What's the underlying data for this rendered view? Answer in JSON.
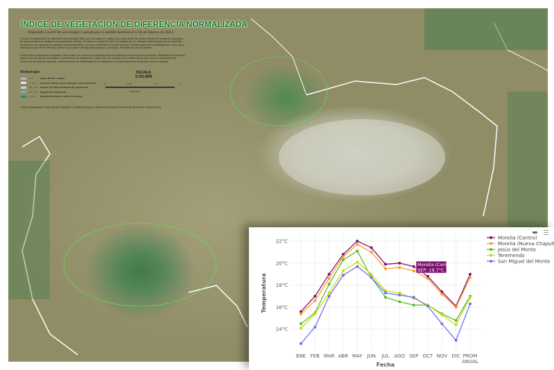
{
  "map": {
    "title": "ÍNDICE DE VEGETACIÓN DE DIFERENCIA NORMALIZADA",
    "subtitle": "Elaborado a partir de una imagen captada por el satélite Sentinel-2 el 18 de febrero de 2024.",
    "paragraph1": "El Índice de Vegetación de Diferencia Normalizada (NDVI, por sus siglas en inglés) es el más común de varios índices de vegetación derivados de observaciones en imágenes de percepción remota. Se basa en la relación entre la cantidad de luz reflejada (reflectancia) por la superficie terrestre en las regiones del espectro electromagnético: luz roja e infrarroja (infrarrojo cercano). Valores bajos de luz reflejada en el color rojo y reflectancia alta en el infrarrojo indican una mayor actividad fotosintética o cantidad y densidad de plantas verdes.",
    "paragraph2": "El NDVI tiene aplicaciones múltiples, sobre todo si se cuenta con observaciones en diferentes fechas (series de tiempo). Mediante el análisis de estas series de tiempo se facilita el monitoreo de la vegetación y detección de cambios en la cobertura/uso del suelo, el seguimiento de avance de los cultivos agrícolas, caracterización de la fenología de la vegetación y el seguimiento de fenómenos como la sequía.",
    "legend_title": "Simbología",
    "legend": [
      {
        "range": "< 0",
        "label": "Agua, Rocas o nubes",
        "color": "#b8b8b8"
      },
      {
        "range": "0 - 0.1",
        "label": "Construcciones, zonas urbanas, suelo expuesto",
        "color": "#e8e8e8"
      },
      {
        "range": "0.1 - 0.3",
        "label": "Suelos con baja presencia de vegetación",
        "color": "#d9d6b0"
      },
      {
        "range": "0.3 - 0.4",
        "label": "Vegetación moderada",
        "color": "#6fbf8a"
      },
      {
        "range": "> 0.4",
        "label": "Vegetación densa, cultivos de riego",
        "color": "#2e8b57"
      }
    ],
    "scale_title": "ESCALA",
    "scale_value": "1:50,000",
    "scale_ticks": [
      "0",
      "1.25",
      "2.5",
      "5"
    ],
    "scale_unit": "Kilómetros",
    "credits": "Diseño cartográfico: Dirección de Geografía y Análisis Espacial, Instituto Municipal de Planeación de Morelia, Febrero 2024",
    "colors": {
      "title": "#0d7a1c",
      "boundary": "#ffffff",
      "protected_area": "#3fdc3f"
    }
  },
  "chart_data": {
    "type": "line",
    "xlabel": "Fecha",
    "ylabel": "Temperatura",
    "categories": [
      "ENE",
      "FEB",
      "MAR",
      "ABR",
      "MAY",
      "JUN",
      "JUL",
      "AGO",
      "SEP",
      "OCT",
      "NOV",
      "DIC",
      "PROM ANUAL"
    ],
    "yticks": [
      "14°C",
      "16°C",
      "18°C",
      "20°C",
      "22°C"
    ],
    "ylim": [
      12.3,
      23
    ],
    "grid": true,
    "legend_position": "right",
    "series": [
      {
        "name": "Morelia (Centro)",
        "color": "#7b1070",
        "values": [
          15.6,
          17.0,
          19.0,
          20.8,
          22.0,
          21.4,
          19.9,
          20.0,
          19.7,
          18.8,
          17.4,
          16.1,
          19.0
        ]
      },
      {
        "name": "Morelia (Nueva Chapultepec)",
        "color": "#ff9a1f",
        "values": [
          15.4,
          16.6,
          18.6,
          20.6,
          21.7,
          21.0,
          19.5,
          19.6,
          19.3,
          18.6,
          17.2,
          16.0,
          18.7
        ]
      },
      {
        "name": "Jesús del Monte",
        "color": "#5cb82a",
        "values": [
          14.5,
          15.5,
          18.1,
          20.3,
          21.1,
          18.7,
          16.9,
          16.5,
          16.2,
          16.2,
          15.4,
          14.8,
          17.0
        ]
      },
      {
        "name": "Teremendo",
        "color": "#c8dc10",
        "values": [
          14.1,
          15.4,
          17.3,
          19.3,
          20.1,
          19.0,
          17.5,
          17.3,
          16.8,
          16.2,
          15.3,
          14.4,
          16.9
        ]
      },
      {
        "name": "San Miguel del Monte",
        "color": "#6e6ef5",
        "values": [
          12.7,
          14.2,
          17.0,
          18.9,
          19.7,
          18.7,
          17.3,
          17.1,
          16.9,
          16.1,
          14.5,
          13.0,
          16.3
        ]
      }
    ],
    "tooltip": {
      "series": "Morelia (Centro)",
      "text": "SEP: 19.7°C"
    }
  }
}
